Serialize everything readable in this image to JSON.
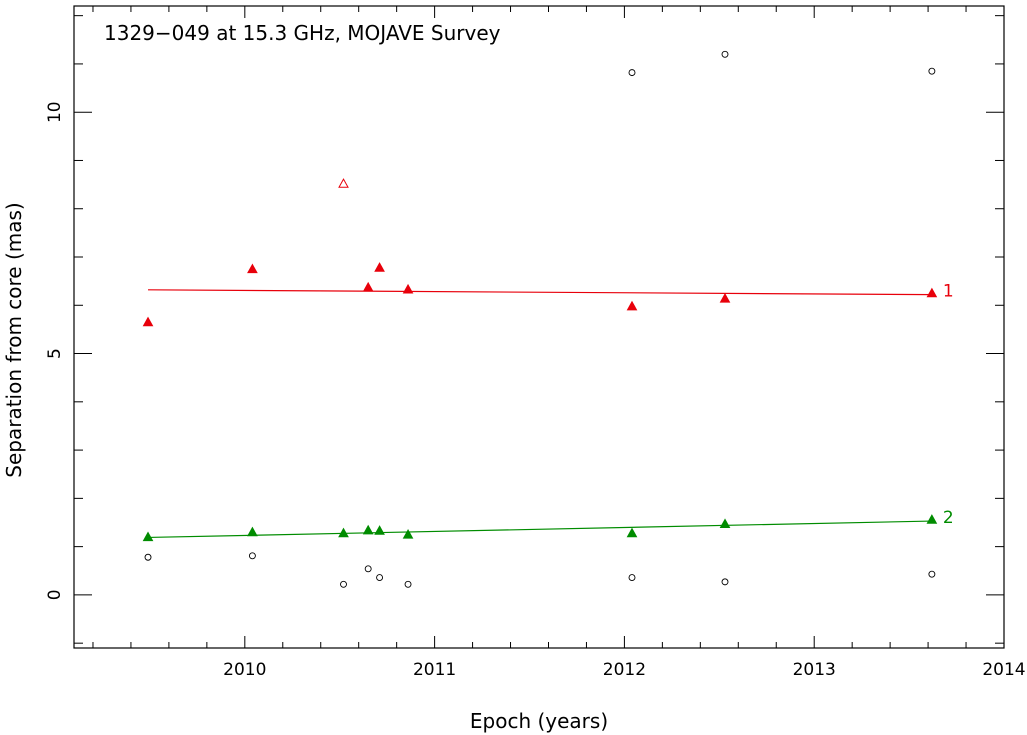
{
  "chart_data": {
    "type": "scatter",
    "title": "1329−049 at 15.3 GHz, MOJAVE Survey",
    "xlabel": "Epoch (years)",
    "ylabel": "Separation from core (mas)",
    "xlim": [
      2009.1,
      2014.0
    ],
    "ylim": [
      -1.1,
      12.2
    ],
    "xticks": [
      {
        "value": 2010,
        "label": "2010"
      },
      {
        "value": 2011,
        "label": "2011"
      },
      {
        "value": 2012,
        "label": "2012"
      },
      {
        "value": 2013,
        "label": "2013"
      },
      {
        "value": 2014,
        "label": "2014"
      }
    ],
    "yticks": [
      {
        "value": 0,
        "label": "0"
      },
      {
        "value": 5,
        "label": "5"
      },
      {
        "value": 10,
        "label": "10"
      }
    ],
    "x_minor_step": 0.2,
    "y_minor_step": 1,
    "grid": false,
    "colors": {
      "component1": "#e8000b",
      "component2": "#008c00",
      "other": "#000000"
    },
    "series": [
      {
        "name": "1",
        "marker": "filled-triangle",
        "color": "#e8000b",
        "points": [
          {
            "x": 2009.49,
            "y": 5.65
          },
          {
            "x": 2010.04,
            "y": 6.75
          },
          {
            "x": 2010.65,
            "y": 6.37
          },
          {
            "x": 2010.71,
            "y": 6.78
          },
          {
            "x": 2010.86,
            "y": 6.33
          },
          {
            "x": 2012.04,
            "y": 5.98
          },
          {
            "x": 2012.53,
            "y": 6.14
          },
          {
            "x": 2013.62,
            "y": 6.25
          }
        ],
        "fit": {
          "x": [
            2009.49,
            2013.62
          ],
          "y": [
            6.32,
            6.22
          ]
        }
      },
      {
        "name": "2",
        "marker": "filled-triangle",
        "color": "#008c00",
        "points": [
          {
            "x": 2009.49,
            "y": 1.2
          },
          {
            "x": 2010.04,
            "y": 1.3
          },
          {
            "x": 2010.52,
            "y": 1.28
          },
          {
            "x": 2010.65,
            "y": 1.34
          },
          {
            "x": 2010.71,
            "y": 1.33
          },
          {
            "x": 2010.86,
            "y": 1.25
          },
          {
            "x": 2012.04,
            "y": 1.28
          },
          {
            "x": 2012.53,
            "y": 1.47
          },
          {
            "x": 2013.62,
            "y": 1.56
          }
        ],
        "fit": {
          "x": [
            2009.49,
            2013.62
          ],
          "y": [
            1.19,
            1.53
          ]
        }
      },
      {
        "name": "",
        "marker": "open-triangle",
        "color": "#e8000b",
        "points": [
          {
            "x": 2010.52,
            "y": 8.52
          }
        ]
      },
      {
        "name": "",
        "marker": "open-circle",
        "color": "#000000",
        "points": [
          {
            "x": 2009.49,
            "y": 0.78
          },
          {
            "x": 2010.04,
            "y": 0.81
          },
          {
            "x": 2010.52,
            "y": 0.22
          },
          {
            "x": 2010.65,
            "y": 0.54
          },
          {
            "x": 2010.71,
            "y": 0.36
          },
          {
            "x": 2010.86,
            "y": 0.22
          },
          {
            "x": 2012.04,
            "y": 0.36
          },
          {
            "x": 2012.53,
            "y": 0.27
          },
          {
            "x": 2013.62,
            "y": 0.43
          },
          {
            "x": 2012.04,
            "y": 10.82
          },
          {
            "x": 2012.53,
            "y": 11.2
          },
          {
            "x": 2013.62,
            "y": 10.85
          }
        ]
      }
    ]
  }
}
